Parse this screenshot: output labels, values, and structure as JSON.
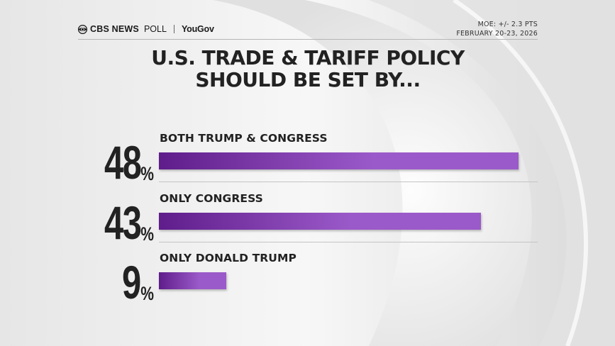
{
  "header": {
    "brand_cbs": "CBS NEWS",
    "brand_poll": "POLL",
    "brand_partner": "YouGov",
    "moe": "MOE: +/- 2.3 PTS",
    "dates": "FEBRUARY 20-23, 2026"
  },
  "icons": {
    "brand_mark": "cbs-eye-icon"
  },
  "colors": {
    "bar_start": "#5e1d8a",
    "bar_end": "#9b5ac9",
    "text": "#222222"
  },
  "chart_data": {
    "type": "bar",
    "orientation": "horizontal",
    "title_lines": [
      "U.S. TRADE & TARIFF POLICY",
      "SHOULD BE SET BY..."
    ],
    "categories": [
      "BOTH TRUMP & CONGRESS",
      "ONLY CONGRESS",
      "ONLY DONALD TRUMP"
    ],
    "values": [
      48,
      43,
      9
    ],
    "unit": "%",
    "xlim": [
      0,
      48
    ]
  }
}
